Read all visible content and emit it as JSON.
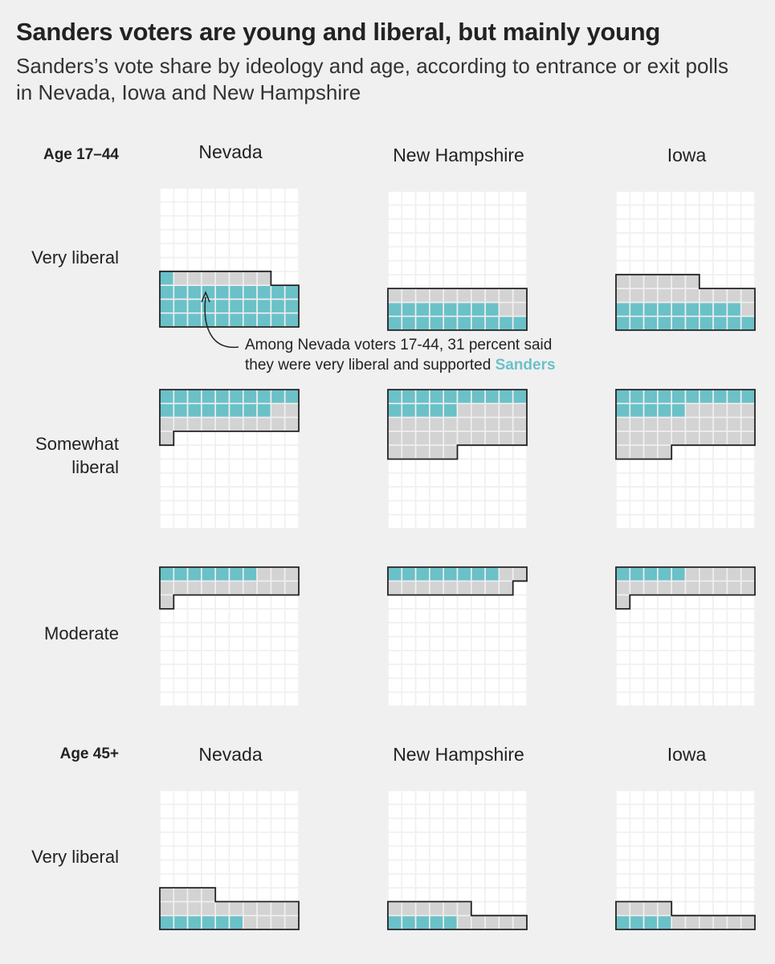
{
  "title": "Sanders voters are young and liberal, but mainly young",
  "subtitle": "Sanders’s vote share by ideology and age, according to entrance or exit polls in Nevada, Iowa and New Hampshire",
  "colors": {
    "sanders": "#6bc1c8",
    "others": "#d3d3d3",
    "empty": "#ffffff",
    "outline": "#222222",
    "background": "#f0f0f0"
  },
  "sections": [
    {
      "age_label": "Age 17–44",
      "states": [
        "Nevada",
        "New Hampshire",
        "Iowa"
      ]
    },
    {
      "age_label": "Age 45+",
      "states": [
        "Nevada",
        "New Hampshire",
        "Iowa"
      ]
    }
  ],
  "row_labels": {
    "very_liberal": "Very liberal",
    "somewhat_liberal_1": "Somewhat",
    "somewhat_liberal_2": "liberal",
    "moderate": "Moderate",
    "very_liberal_45": "Very liberal"
  },
  "annotation": {
    "text_1": "Among Nevada voters 17-44, 31 percent said",
    "text_2": "they were very liberal and supported ",
    "highlight": "Sanders"
  },
  "chart_data": {
    "type": "waffle",
    "unit": "percent of voters in age group (1 square = 1%)",
    "grid": "10 columns x 10 rows per panel",
    "panels": [
      {
        "age": "17-44",
        "ideology": "Very liberal",
        "state": "Nevada",
        "sanders": 31,
        "total": 38
      },
      {
        "age": "17-44",
        "ideology": "Very liberal",
        "state": "New Hampshire",
        "sanders": 18,
        "total": 30
      },
      {
        "age": "17-44",
        "ideology": "Very liberal",
        "state": "Iowa",
        "sanders": 19,
        "total": 36
      },
      {
        "age": "17-44",
        "ideology": "Somewhat liberal",
        "state": "Nevada",
        "sanders": 18,
        "total": 31
      },
      {
        "age": "17-44",
        "ideology": "Somewhat liberal",
        "state": "New Hampshire",
        "sanders": 15,
        "total": 45
      },
      {
        "age": "17-44",
        "ideology": "Somewhat liberal",
        "state": "Iowa",
        "sanders": 15,
        "total": 44
      },
      {
        "age": "17-44",
        "ideology": "Moderate",
        "state": "Nevada",
        "sanders": 7,
        "total": 21
      },
      {
        "age": "17-44",
        "ideology": "Moderate",
        "state": "New Hampshire",
        "sanders": 8,
        "total": 19
      },
      {
        "age": "17-44",
        "ideology": "Moderate",
        "state": "Iowa",
        "sanders": 5,
        "total": 21
      },
      {
        "age": "45+",
        "ideology": "Very liberal",
        "state": "Nevada",
        "sanders": 6,
        "total": 24
      },
      {
        "age": "45+",
        "ideology": "Very liberal",
        "state": "New Hampshire",
        "sanders": 5,
        "total": 16
      },
      {
        "age": "45+",
        "ideology": "Very liberal",
        "state": "Iowa",
        "sanders": 4,
        "total": 14
      }
    ]
  }
}
